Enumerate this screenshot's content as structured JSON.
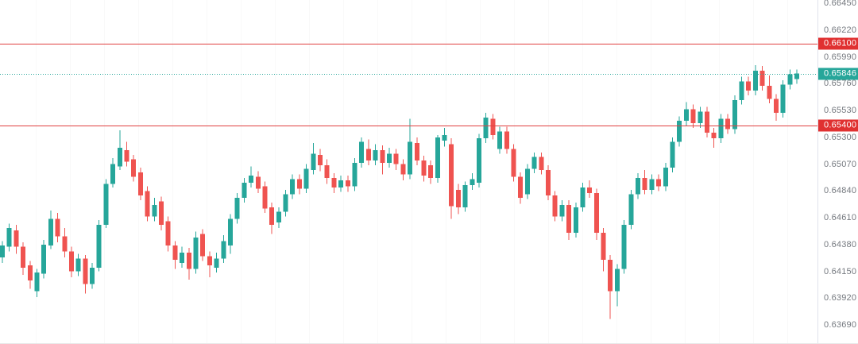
{
  "chart_data": {
    "type": "candlestick",
    "legend_position": "none",
    "grid": "faint-vertical",
    "y_axis": {
      "side": "right",
      "tick_labels": [
        "0.66450",
        "0.66220",
        "0.65990",
        "0.65760",
        "0.65530",
        "0.65300",
        "0.65070",
        "0.64840",
        "0.64610",
        "0.64380",
        "0.64150",
        "0.63920",
        "0.63690"
      ],
      "price_top": 0.6645,
      "price_bottom": 0.6369
    },
    "levels": [
      {
        "label": "0.66100",
        "value": 0.661,
        "line_style": "solid",
        "line_color": "#e04040",
        "badge_bg": "#e03131",
        "role": "resistance-line"
      },
      {
        "label": "0.65846",
        "value": 0.65846,
        "line_style": "dotted",
        "line_color": "#26a69a",
        "badge_bg": "#26a69a",
        "role": "last-price"
      },
      {
        "label": "0.65400",
        "value": 0.654,
        "line_style": "solid",
        "line_color": "#e04040",
        "badge_bg": "#e03131",
        "role": "support-line"
      }
    ],
    "colors": {
      "up": "#26a69a",
      "down": "#ef5350",
      "axis_text": "#75797f",
      "axis_line": "#e0e3eb",
      "grid": "rgba(0,0,0,0.025)"
    },
    "candles": [
      [
        0.6427,
        0.6441,
        0.6422,
        0.6437
      ],
      [
        0.6436,
        0.6456,
        0.6432,
        0.6452
      ],
      [
        0.645,
        0.6455,
        0.643,
        0.6436
      ],
      [
        0.6436,
        0.644,
        0.6412,
        0.6418
      ],
      [
        0.642,
        0.6424,
        0.64,
        0.6407
      ],
      [
        0.6398,
        0.6417,
        0.6393,
        0.6414
      ],
      [
        0.6413,
        0.6442,
        0.6409,
        0.6438
      ],
      [
        0.6437,
        0.6467,
        0.6434,
        0.646
      ],
      [
        0.646,
        0.6465,
        0.644,
        0.6445
      ],
      [
        0.6445,
        0.6452,
        0.6427,
        0.6432
      ],
      [
        0.6432,
        0.6436,
        0.641,
        0.6415
      ],
      [
        0.6415,
        0.643,
        0.6411,
        0.6426
      ],
      [
        0.6426,
        0.6429,
        0.6396,
        0.6404
      ],
      [
        0.6404,
        0.6422,
        0.64,
        0.6418
      ],
      [
        0.6418,
        0.6459,
        0.6415,
        0.6455
      ],
      [
        0.6455,
        0.6494,
        0.6452,
        0.649
      ],
      [
        0.649,
        0.6512,
        0.6487,
        0.6507
      ],
      [
        0.6505,
        0.6536,
        0.6502,
        0.6521
      ],
      [
        0.6519,
        0.6526,
        0.6505,
        0.6509
      ],
      [
        0.6511,
        0.6515,
        0.6492,
        0.6496
      ],
      [
        0.65,
        0.6504,
        0.6476,
        0.648
      ],
      [
        0.6484,
        0.6488,
        0.6458,
        0.6462
      ],
      [
        0.6462,
        0.6478,
        0.6458,
        0.6472
      ],
      [
        0.6475,
        0.6479,
        0.645,
        0.6455
      ],
      [
        0.6458,
        0.6462,
        0.6432,
        0.6437
      ],
      [
        0.6437,
        0.6441,
        0.6417,
        0.6425
      ],
      [
        0.6422,
        0.6436,
        0.6418,
        0.6431
      ],
      [
        0.6431,
        0.6435,
        0.6408,
        0.6417
      ],
      [
        0.6417,
        0.6449,
        0.6413,
        0.6444
      ],
      [
        0.6447,
        0.6451,
        0.6424,
        0.6428
      ],
      [
        0.6428,
        0.6432,
        0.641,
        0.642
      ],
      [
        0.6418,
        0.6431,
        0.6414,
        0.6426
      ],
      [
        0.6426,
        0.6446,
        0.6422,
        0.6441
      ],
      [
        0.6437,
        0.6464,
        0.643,
        0.646
      ],
      [
        0.646,
        0.6482,
        0.6456,
        0.6478
      ],
      [
        0.6478,
        0.6495,
        0.6474,
        0.6491
      ],
      [
        0.6491,
        0.6505,
        0.6487,
        0.6497
      ],
      [
        0.6496,
        0.6501,
        0.6482,
        0.6486
      ],
      [
        0.6488,
        0.6492,
        0.6465,
        0.6469
      ],
      [
        0.647,
        0.6474,
        0.6447,
        0.6455
      ],
      [
        0.6457,
        0.647,
        0.6452,
        0.6466
      ],
      [
        0.6466,
        0.6485,
        0.6462,
        0.6481
      ],
      [
        0.6481,
        0.6498,
        0.6477,
        0.6494
      ],
      [
        0.6494,
        0.6498,
        0.6481,
        0.6486
      ],
      [
        0.6486,
        0.6507,
        0.6482,
        0.6503
      ],
      [
        0.6502,
        0.6525,
        0.6498,
        0.6516
      ],
      [
        0.6515,
        0.652,
        0.6501,
        0.6506
      ],
      [
        0.6506,
        0.6511,
        0.649,
        0.6495
      ],
      [
        0.6495,
        0.6499,
        0.6482,
        0.6487
      ],
      [
        0.6487,
        0.6497,
        0.6483,
        0.6493
      ],
      [
        0.6493,
        0.6497,
        0.6483,
        0.6488
      ],
      [
        0.6488,
        0.6512,
        0.6484,
        0.6508
      ],
      [
        0.6508,
        0.653,
        0.6504,
        0.6526
      ],
      [
        0.652,
        0.6528,
        0.6506,
        0.651
      ],
      [
        0.651,
        0.6524,
        0.6506,
        0.6519
      ],
      [
        0.6519,
        0.6523,
        0.6498,
        0.6508
      ],
      [
        0.6508,
        0.6521,
        0.6504,
        0.6516
      ],
      [
        0.6516,
        0.652,
        0.6502,
        0.6507
      ],
      [
        0.6507,
        0.6511,
        0.6493,
        0.6498
      ],
      [
        0.6498,
        0.6546,
        0.6494,
        0.6526
      ],
      [
        0.6525,
        0.653,
        0.6506,
        0.651
      ],
      [
        0.651,
        0.6514,
        0.6492,
        0.6497
      ],
      [
        0.6506,
        0.651,
        0.649,
        0.6495
      ],
      [
        0.6495,
        0.6532,
        0.6491,
        0.653
      ],
      [
        0.6527,
        0.6538,
        0.6522,
        0.6532
      ],
      [
        0.6524,
        0.6529,
        0.646,
        0.6471
      ],
      [
        0.6485,
        0.649,
        0.6464,
        0.647
      ],
      [
        0.647,
        0.6492,
        0.6466,
        0.6489
      ],
      [
        0.6489,
        0.6499,
        0.6485,
        0.6494
      ],
      [
        0.6491,
        0.6533,
        0.6487,
        0.6529
      ],
      [
        0.6529,
        0.6551,
        0.6525,
        0.6547
      ],
      [
        0.6546,
        0.655,
        0.6528,
        0.6532
      ],
      [
        0.652,
        0.6539,
        0.6516,
        0.6535
      ],
      [
        0.6535,
        0.6539,
        0.6516,
        0.652
      ],
      [
        0.652,
        0.6524,
        0.6492,
        0.6496
      ],
      [
        0.6496,
        0.65,
        0.6473,
        0.6478
      ],
      [
        0.6481,
        0.6507,
        0.6477,
        0.6503
      ],
      [
        0.6503,
        0.6517,
        0.6499,
        0.6513
      ],
      [
        0.6513,
        0.6517,
        0.6498,
        0.6502
      ],
      [
        0.6502,
        0.6506,
        0.6476,
        0.648
      ],
      [
        0.648,
        0.6484,
        0.6458,
        0.6462
      ],
      [
        0.6462,
        0.6476,
        0.6458,
        0.6472
      ],
      [
        0.6472,
        0.6476,
        0.6442,
        0.6448
      ],
      [
        0.6448,
        0.6474,
        0.6444,
        0.647
      ],
      [
        0.647,
        0.6491,
        0.6466,
        0.6487
      ],
      [
        0.6487,
        0.6493,
        0.6478,
        0.6482
      ],
      [
        0.6482,
        0.6486,
        0.6442,
        0.6448
      ],
      [
        0.6448,
        0.6452,
        0.6415,
        0.6425
      ],
      [
        0.6425,
        0.6429,
        0.6374,
        0.6398
      ],
      [
        0.6398,
        0.6421,
        0.6385,
        0.6417
      ],
      [
        0.6417,
        0.6459,
        0.6413,
        0.6455
      ],
      [
        0.6455,
        0.6485,
        0.6451,
        0.6481
      ],
      [
        0.6481,
        0.6499,
        0.6477,
        0.6495
      ],
      [
        0.6495,
        0.6502,
        0.6481,
        0.6485
      ],
      [
        0.6485,
        0.6498,
        0.6481,
        0.6494
      ],
      [
        0.6494,
        0.6498,
        0.6484,
        0.6488
      ],
      [
        0.6488,
        0.6508,
        0.6484,
        0.6504
      ],
      [
        0.6504,
        0.653,
        0.65,
        0.6526
      ],
      [
        0.6526,
        0.6548,
        0.6522,
        0.6544
      ],
      [
        0.6544,
        0.656,
        0.654,
        0.6554
      ],
      [
        0.6554,
        0.6558,
        0.6538,
        0.6542
      ],
      [
        0.6542,
        0.6556,
        0.6538,
        0.6552
      ],
      [
        0.6552,
        0.6556,
        0.653,
        0.6534
      ],
      [
        0.6534,
        0.6538,
        0.6521,
        0.6529
      ],
      [
        0.6529,
        0.655,
        0.6525,
        0.6546
      ],
      [
        0.6546,
        0.655,
        0.6533,
        0.6537
      ],
      [
        0.6537,
        0.6566,
        0.6533,
        0.6562
      ],
      [
        0.6562,
        0.6582,
        0.6558,
        0.6578
      ],
      [
        0.6578,
        0.6582,
        0.6566,
        0.657
      ],
      [
        0.657,
        0.6592,
        0.6566,
        0.6587
      ],
      [
        0.6587,
        0.6591,
        0.657,
        0.6574
      ],
      [
        0.6574,
        0.6583,
        0.6559,
        0.6563
      ],
      [
        0.6563,
        0.6567,
        0.6544,
        0.6551
      ],
      [
        0.6551,
        0.6579,
        0.6547,
        0.6575
      ],
      [
        0.6575,
        0.6588,
        0.6571,
        0.6584
      ],
      [
        0.658,
        0.6588,
        0.6576,
        0.65846
      ]
    ]
  }
}
